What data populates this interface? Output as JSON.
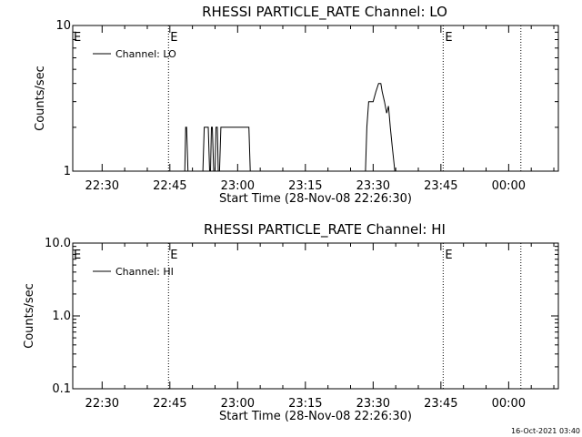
{
  "timestamp": "16-Oct-2021 03:40",
  "chart_data": [
    {
      "type": "line",
      "title": "RHESSI PARTICLE_RATE Channel: LO",
      "xlabel": "Start Time (28-Nov-08 22:26:30)",
      "ylabel": "Counts/sec",
      "yscale": "log",
      "ylim": [
        1,
        10
      ],
      "yticks": [
        {
          "v": 1,
          "label": "1"
        },
        {
          "v": 10,
          "label": "10"
        }
      ],
      "xlim_minutes": [
        -6.5,
        101
      ],
      "xticks": [
        {
          "m": 0,
          "label": "22:30"
        },
        {
          "m": 15,
          "label": "22:45"
        },
        {
          "m": 30,
          "label": "23:00"
        },
        {
          "m": 45,
          "label": "23:15"
        },
        {
          "m": 60,
          "label": "23:30"
        },
        {
          "m": 75,
          "label": "23:45"
        },
        {
          "m": 90,
          "label": "00:00"
        }
      ],
      "event_lines": [
        {
          "m": 14.7,
          "label": "E"
        },
        {
          "m": 75.5,
          "label": "E"
        },
        {
          "m": 92.7,
          "label": ""
        }
      ],
      "legend": {
        "entries": [
          "Channel: LO"
        ],
        "position": "top-left"
      },
      "series": [
        {
          "name": "Channel: LO",
          "x_minutes": [
            18.0,
            18.3,
            18.5,
            18.7,
            19.0,
            19.2,
            22.3,
            22.6,
            23.5,
            23.8,
            24.0,
            24.2,
            24.4,
            24.7,
            25.0,
            25.2,
            25.5,
            25.7,
            26.0,
            26.3,
            28.2,
            28.5,
            32.5,
            32.8,
            58.3,
            58.6,
            59.0,
            59.5,
            60.0,
            60.6,
            61.2,
            61.7,
            62.0,
            62.5,
            63.0,
            63.4,
            63.8,
            64.2,
            64.8,
            65.5
          ],
          "y": [
            1,
            1,
            2,
            2,
            1,
            1,
            1,
            2,
            2,
            1,
            1,
            2,
            2,
            1,
            1,
            2,
            2,
            1,
            1,
            2,
            2,
            2,
            2,
            1,
            1,
            2,
            3,
            3,
            3,
            3.5,
            4,
            4,
            3.5,
            3,
            2.5,
            2.8,
            2,
            1.5,
            1,
            1
          ]
        }
      ]
    },
    {
      "type": "line",
      "title": "RHESSI PARTICLE_RATE Channel: HI",
      "xlabel": "Start Time (28-Nov-08 22:26:30)",
      "ylabel": "Counts/sec",
      "yscale": "log",
      "ylim": [
        0.1,
        10
      ],
      "yticks": [
        {
          "v": 0.1,
          "label": "0.1"
        },
        {
          "v": 1,
          "label": "1.0"
        },
        {
          "v": 10,
          "label": "10.0"
        }
      ],
      "xlim_minutes": [
        -6.5,
        101
      ],
      "xticks": [
        {
          "m": 0,
          "label": "22:30"
        },
        {
          "m": 15,
          "label": "22:45"
        },
        {
          "m": 30,
          "label": "23:00"
        },
        {
          "m": 45,
          "label": "23:15"
        },
        {
          "m": 60,
          "label": "23:30"
        },
        {
          "m": 75,
          "label": "23:45"
        },
        {
          "m": 90,
          "label": "00:00"
        }
      ],
      "event_lines": [
        {
          "m": 14.7,
          "label": "E"
        },
        {
          "m": 75.5,
          "label": "E"
        },
        {
          "m": 92.7,
          "label": ""
        }
      ],
      "legend": {
        "entries": [
          "Channel: HI"
        ],
        "position": "top-left"
      },
      "series": [
        {
          "name": "Channel: HI",
          "x_minutes": [],
          "y": []
        }
      ]
    }
  ]
}
